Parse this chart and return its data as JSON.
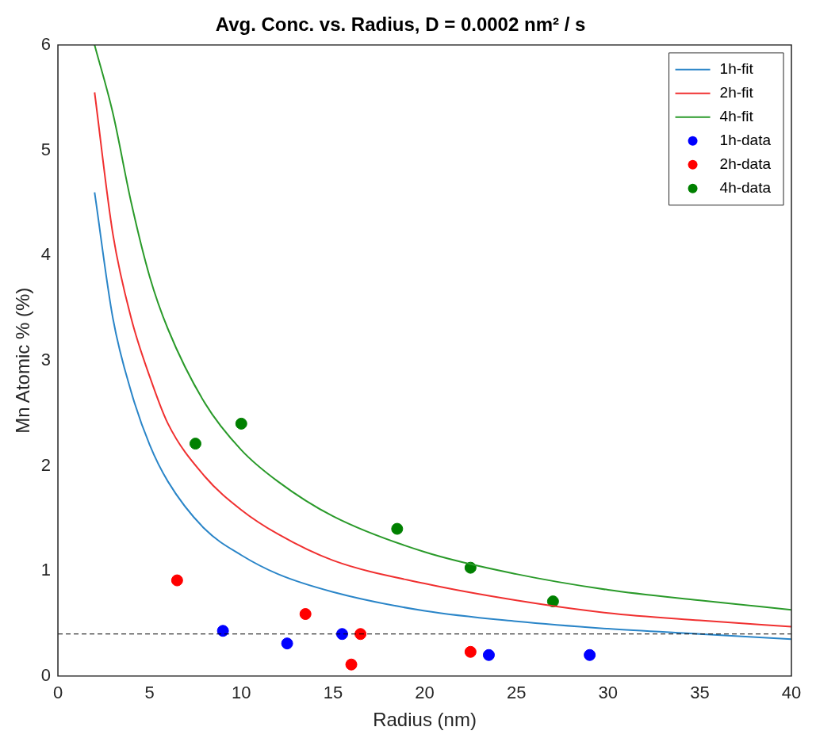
{
  "chart_data": {
    "type": "line",
    "title": "Avg. Conc. vs. Radius, D = 0.0002 nm² / s",
    "xlabel": "Radius (nm)",
    "ylabel": "Mn Atomic % (%)",
    "xlim": [
      0,
      40
    ],
    "ylim": [
      0,
      6
    ],
    "xticks": [
      0,
      5,
      10,
      15,
      20,
      25,
      30,
      35,
      40
    ],
    "yticks": [
      0,
      1,
      2,
      3,
      4,
      5,
      6
    ],
    "grid": false,
    "legend": "top right",
    "series": [
      {
        "name": "1h-fit",
        "type": "line",
        "marker": "none",
        "color": "#2a85c8",
        "x": [
          2,
          3,
          4,
          5,
          6,
          8,
          10,
          12,
          15,
          20,
          25,
          30,
          35,
          40
        ],
        "values": [
          4.6,
          3.4,
          2.7,
          2.2,
          1.85,
          1.4,
          1.15,
          0.97,
          0.8,
          0.62,
          0.52,
          0.45,
          0.4,
          0.35
        ]
      },
      {
        "name": "2h-fit",
        "type": "line",
        "marker": "none",
        "color": "#f03030",
        "x": [
          2,
          3,
          4,
          5,
          6,
          8,
          10,
          12,
          15,
          20,
          25,
          30,
          35,
          40
        ],
        "values": [
          5.55,
          4.2,
          3.4,
          2.85,
          2.4,
          1.9,
          1.58,
          1.35,
          1.1,
          0.88,
          0.72,
          0.6,
          0.53,
          0.47
        ]
      },
      {
        "name": "4h-fit",
        "type": "line",
        "marker": "none",
        "color": "#2a9a2a",
        "x": [
          2,
          3,
          4,
          5,
          6,
          8,
          10,
          12,
          15,
          20,
          25,
          30,
          35,
          40
        ],
        "values": [
          6.0,
          5.35,
          4.5,
          3.8,
          3.3,
          2.6,
          2.15,
          1.85,
          1.52,
          1.18,
          0.97,
          0.82,
          0.72,
          0.63
        ]
      },
      {
        "name": "1h-data",
        "type": "scatter",
        "marker": "circle",
        "color": "#0000ff",
        "x": [
          9,
          12.5,
          15.5,
          23.5,
          29
        ],
        "values": [
          0.43,
          0.31,
          0.4,
          0.2,
          0.2
        ]
      },
      {
        "name": "2h-data",
        "type": "scatter",
        "marker": "circle",
        "color": "#ff0000",
        "x": [
          6.5,
          13.5,
          16,
          16.5,
          22.5
        ],
        "values": [
          0.91,
          0.59,
          0.11,
          0.4,
          0.23
        ]
      },
      {
        "name": "4h-data",
        "type": "scatter",
        "marker": "circle",
        "color": "#008000",
        "x": [
          7.5,
          10,
          18.5,
          22.5,
          27
        ],
        "values": [
          2.21,
          2.4,
          1.4,
          1.03,
          0.71
        ]
      }
    ],
    "ref_lines": [
      {
        "axis": "y",
        "value": 0.4,
        "color": "#000000",
        "line_style": "dashed"
      }
    ]
  }
}
